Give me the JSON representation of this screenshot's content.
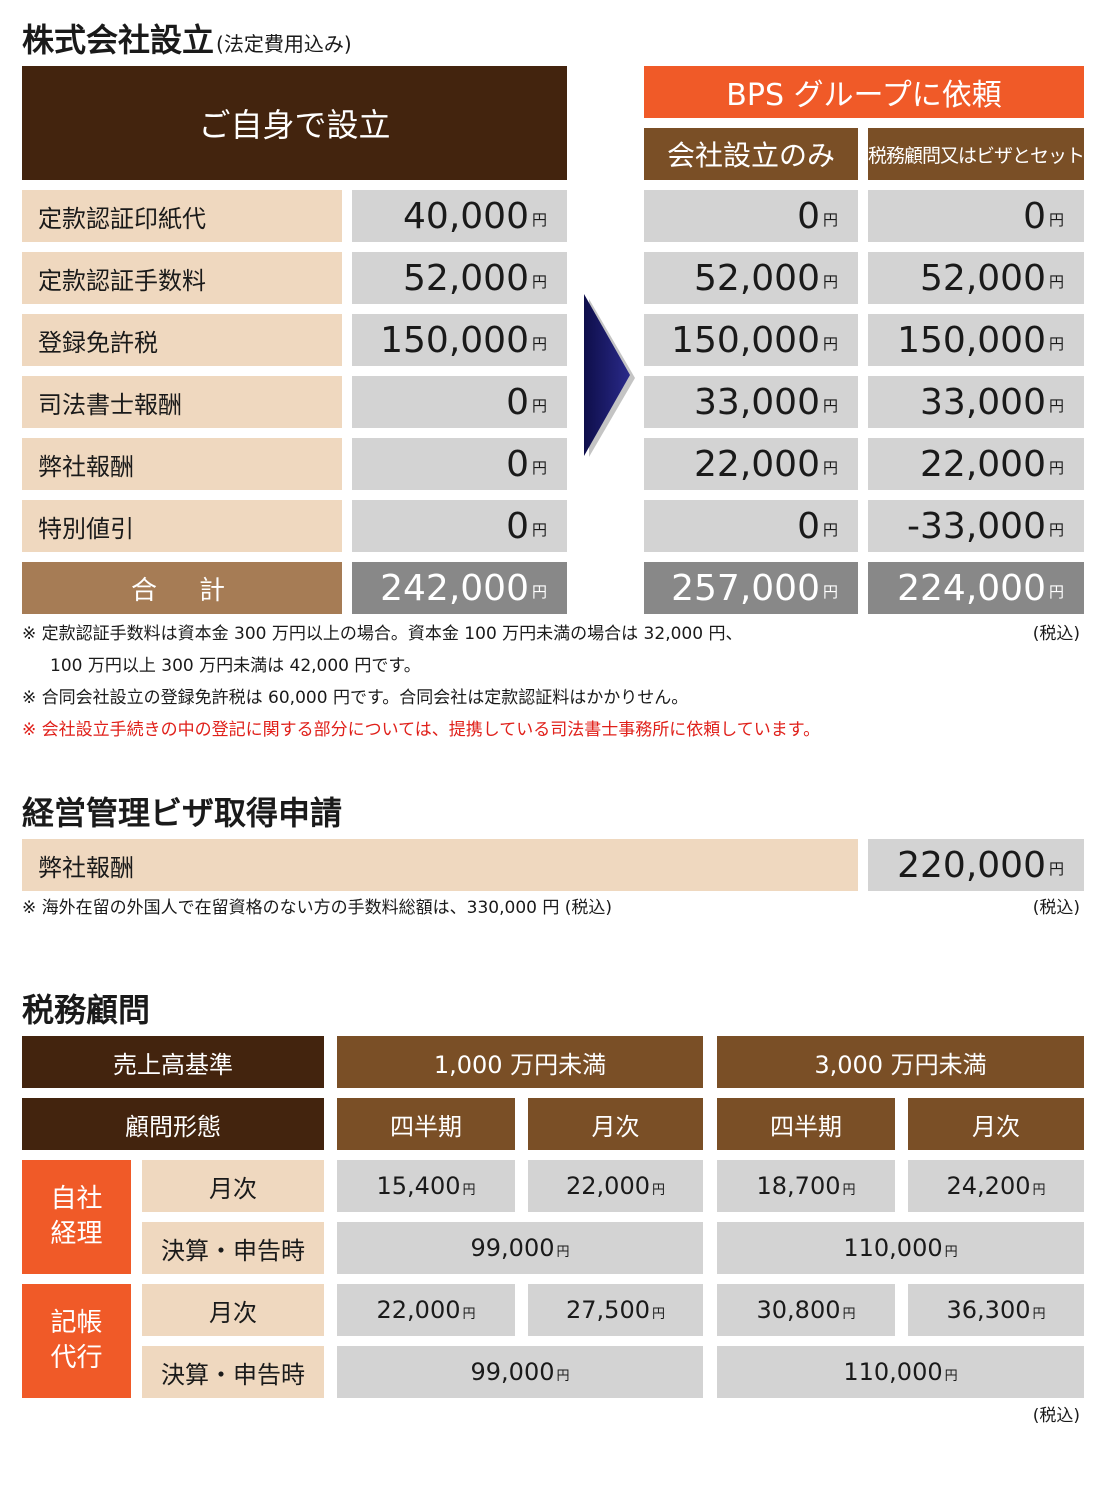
{
  "sec1": {
    "title": "株式会社設立",
    "subtitle": "(法定費用込み)",
    "self_header": "ご自身で設立",
    "bps_header": "BPS グループに依頼",
    "col_a": "会社設立のみ",
    "col_b": "税務顧問又はビザとセット",
    "yen": "円",
    "rows": [
      {
        "label": "定款認証印紙代",
        "self": "40,000",
        "a": "0",
        "b": "0"
      },
      {
        "label": "定款認証手数料",
        "self": "52,000",
        "a": "52,000",
        "b": "52,000"
      },
      {
        "label": "登録免許税",
        "self": "150,000",
        "a": "150,000",
        "b": "150,000"
      },
      {
        "label": "司法書士報酬",
        "self": "0",
        "a": "33,000",
        "b": "33,000"
      },
      {
        "label": "弊社報酬",
        "self": "0",
        "a": "22,000",
        "b": "22,000"
      },
      {
        "label": "特別値引",
        "self": "0",
        "a": "0",
        "b": "-33,000"
      }
    ],
    "total": {
      "label": "合　計",
      "self": "242,000",
      "a": "257,000",
      "b": "224,000"
    },
    "tax_note": "(税込)",
    "notes": [
      "※ 定款認証手数料は資本金 300 万円以上の場合。資本金 100 万円未満の場合は 32,000 円、",
      "100 万円以上 300 万円未満は 42,000 円です。",
      "※ 合同会社設立の登録免許税は 60,000 円です。合同会社は定款認証料はかかりせん。",
      "※ 会社設立手続きの中の登記に関する部分については、提携している司法書士事務所に依頼しています。"
    ]
  },
  "sec2": {
    "title": "経営管理ビザ取得申請",
    "label": "弊社報酬",
    "value": "220,000",
    "yen": "円",
    "note": "※ 海外在留の外国人で在留資格のない方の手数料総額は、330,000 円 (税込)",
    "tax_note": "(税込)"
  },
  "sec3": {
    "title": "税務顧問",
    "h_basis": "売上高基準",
    "h_under1000": "1,000 万円未満",
    "h_under3000": "3,000 万円未満",
    "h_type": "顧問形態",
    "quarterly": "四半期",
    "monthly": "月次",
    "g1": "自社\n経理",
    "g2": "記帳\n代行",
    "row_monthly": "月次",
    "row_settle": "決算・申告時",
    "yen": "円",
    "g1_monthly": [
      "15,400",
      "22,000",
      "18,700",
      "24,200"
    ],
    "g1_settle": [
      "99,000",
      "110,000"
    ],
    "g2_monthly": [
      "22,000",
      "27,500",
      "30,800",
      "36,300"
    ],
    "g2_settle": [
      "99,000",
      "110,000"
    ],
    "tax_note": "(税込)"
  }
}
